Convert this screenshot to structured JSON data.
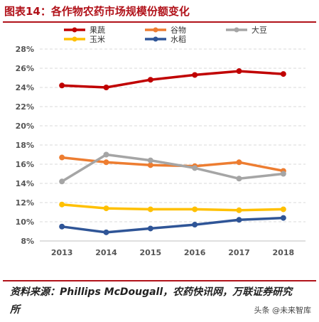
{
  "figure_title": "图表14：各作物农药市场规模份额变化",
  "source_text": "资料来源：Phillips McDougall，农药快讯网，万联证券研究所",
  "watermark_text": "头条 @未来智库",
  "chart_data": {
    "type": "line",
    "title": "",
    "xlabel": "",
    "ylabel": "",
    "x": [
      "2013",
      "2014",
      "2015",
      "2016",
      "2017",
      "2018"
    ],
    "ylim": [
      8,
      28
    ],
    "yticks": [
      8,
      10,
      12,
      14,
      16,
      18,
      20,
      22,
      24,
      26,
      28
    ],
    "ytick_labels": [
      "8%",
      "10%",
      "12%",
      "14%",
      "16%",
      "18%",
      "20%",
      "22%",
      "24%",
      "26%",
      "28%"
    ],
    "grid": true,
    "legend_position": "top",
    "series": [
      {
        "name": "果蔬",
        "color": "#c00000",
        "values": [
          24.2,
          24.0,
          24.8,
          25.3,
          25.7,
          25.4
        ]
      },
      {
        "name": "谷物",
        "color": "#ed7d31",
        "values": [
          16.7,
          16.2,
          15.9,
          15.8,
          16.2,
          15.3
        ]
      },
      {
        "name": "大豆",
        "color": "#a5a5a5",
        "values": [
          14.2,
          17.0,
          16.4,
          15.6,
          14.5,
          15.0
        ]
      },
      {
        "name": "玉米",
        "color": "#ffc000",
        "values": [
          11.8,
          11.4,
          11.3,
          11.3,
          11.2,
          11.3
        ]
      },
      {
        "name": "水稻",
        "color": "#2f5597",
        "values": [
          9.5,
          8.9,
          9.3,
          9.7,
          10.2,
          10.4
        ]
      }
    ]
  }
}
